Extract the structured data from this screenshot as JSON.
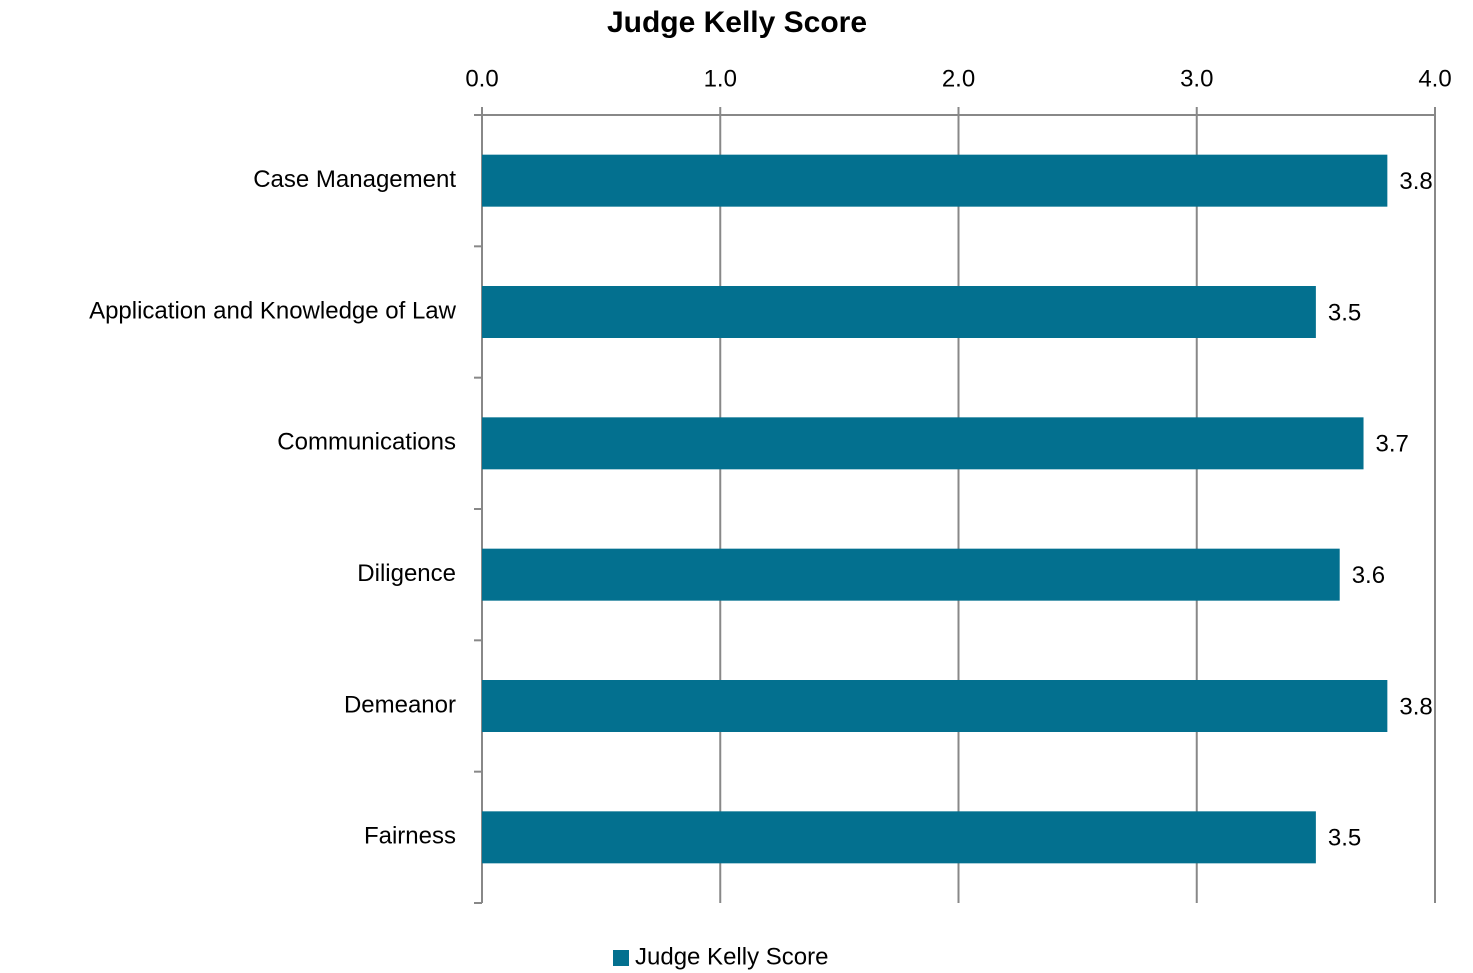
{
  "chart_data": {
    "type": "bar",
    "orientation": "horizontal",
    "title": "Judge Kelly Score",
    "categories": [
      "Case Management",
      "Application and Knowledge of Law",
      "Communications",
      "Diligence",
      "Demeanor",
      "Fairness"
    ],
    "series": [
      {
        "name": "Judge Kelly Score",
        "color": "#03708f",
        "values": [
          3.8,
          3.5,
          3.7,
          3.6,
          3.8,
          3.5
        ]
      }
    ],
    "xlim": [
      0,
      4
    ],
    "xticks": [
      {
        "value": 0,
        "label": "0.0"
      },
      {
        "value": 1,
        "label": "1.0"
      },
      {
        "value": 2,
        "label": "2.0"
      },
      {
        "value": 3,
        "label": "3.0"
      },
      {
        "value": 4,
        "label": "4.0"
      }
    ],
    "grid": true,
    "legend": "bottom"
  }
}
